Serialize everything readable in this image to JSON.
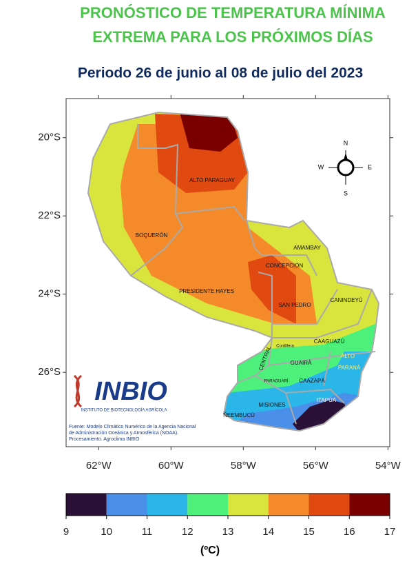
{
  "map": {
    "title_lines": [
      "PRONÓSTICO DE TEMPERATURA MÍNIMA",
      "EXTREMA PARA LOS PRÓXIMOS DÍAS"
    ],
    "period": "Periodo  26 de junio al 08 de julio del 2023",
    "xlim": [
      -62.9,
      -53.95
    ],
    "ylim": [
      -27.9,
      -19.0
    ],
    "xticks": [
      {
        "value": -62,
        "label": "62°W"
      },
      {
        "value": -60,
        "label": "60°W"
      },
      {
        "value": -58,
        "label": "58°W"
      },
      {
        "value": -56,
        "label": "56°W"
      },
      {
        "value": -54,
        "label": "54°W"
      }
    ],
    "yticks": [
      {
        "value": -20,
        "label": "20°S"
      },
      {
        "value": -22,
        "label": "22°S"
      },
      {
        "value": -24,
        "label": "24°S"
      },
      {
        "value": -26,
        "label": "26°S"
      }
    ],
    "departments": [
      "ALTO PARAGUAY",
      "BOQUERÓN",
      "PRESIDENTE HAYES",
      "CONCEPCIÓN",
      "AMAMBAY",
      "SAN PEDRO",
      "CANINDEYÚ",
      "CAAGUAZÚ",
      "Cordillera",
      "CENTRAL",
      "GUAIRÁ",
      "ALTO",
      "PARANÁ",
      "PARAGUARÍ",
      "CAAZAPÁ",
      "MISIONES",
      "ITAPÚA",
      "ÑEEMBUCÚ"
    ],
    "compass": {
      "n": "N",
      "s": "S",
      "e": "E",
      "w": "W"
    },
    "logo": {
      "name": "INBIO",
      "subtitle": "INSTITUTO DE BIOTECNOLOGÍA AGRÍCOLA"
    },
    "source": [
      "Fuente: Modelo Climático Numérico de la Agencia Nacional",
      "de Administración Oceánica y Atmosférica (NOAA).",
      "Procesamiento. Agroclima INBIO"
    ],
    "colorbar": {
      "ticks": [
        9,
        10,
        11,
        12,
        13,
        14,
        15,
        16,
        17
      ],
      "colors": [
        "#2b1038",
        "#4a8fea",
        "#2bb6ea",
        "#4cf07a",
        "#d9e43c",
        "#f58a2a",
        "#e04a10",
        "#7a0000"
      ],
      "unit": "(ºC)"
    }
  }
}
